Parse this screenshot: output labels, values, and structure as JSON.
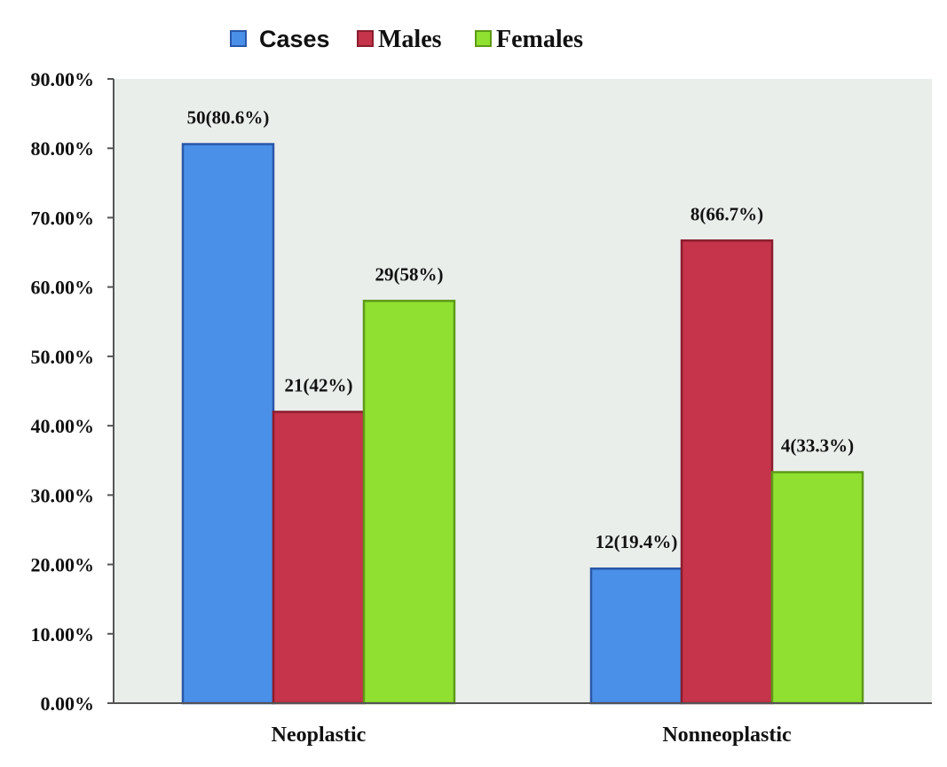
{
  "chart_data": {
    "type": "bar",
    "categories": [
      "Neoplastic",
      "Nonneoplastic"
    ],
    "series": [
      {
        "name": "Cases",
        "color": "#4a90e8",
        "stroke": "#2a57a8",
        "values": [
          80.6,
          19.4
        ],
        "labels": [
          "50(80.6%)",
          "12(19.4%)"
        ]
      },
      {
        "name": "Males",
        "color": "#c5344a",
        "stroke": "#8a1e2e",
        "values": [
          42,
          66.7
        ],
        "labels": [
          "21(42%)",
          "8(66.7%)"
        ]
      },
      {
        "name": "Females",
        "color": "#8fe030",
        "stroke": "#5e9a18",
        "values": [
          58,
          33.3
        ],
        "labels": [
          "29(58%)",
          "4(33.3%)"
        ]
      }
    ],
    "ylim": [
      0,
      90
    ],
    "yticks": [
      "0.00%",
      "10.00%",
      "20.00%",
      "30.00%",
      "40.00%",
      "50.00%",
      "60.00%",
      "70.00%",
      "80.00%",
      "90.00%"
    ],
    "title": "",
    "xlabel": "",
    "ylabel": "",
    "legend": "top-center",
    "plot_background": "#e9eeeb"
  }
}
